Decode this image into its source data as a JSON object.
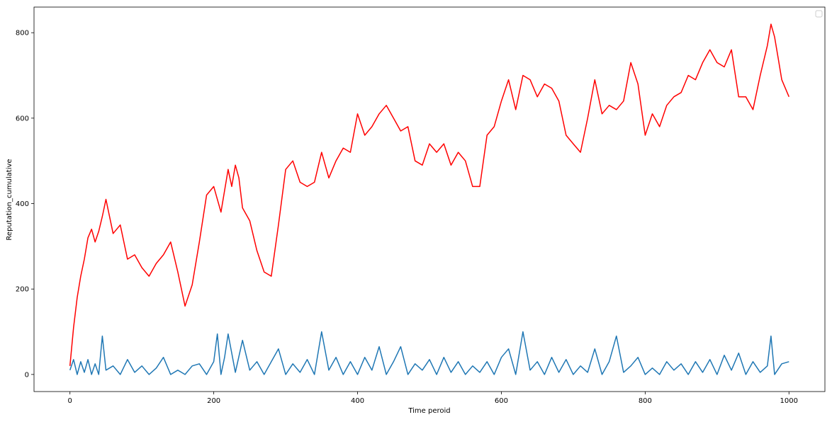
{
  "chart_data": {
    "type": "line",
    "title": "",
    "xlabel": "Time peroid",
    "ylabel": "Reputation_cumulative",
    "xlim": [
      -50,
      1050
    ],
    "ylim": [
      -40,
      860
    ],
    "xticks": [
      0,
      200,
      400,
      600,
      800,
      1000
    ],
    "yticks": [
      0,
      200,
      400,
      600,
      800
    ],
    "grid": false,
    "legend": {
      "placement": "top-right",
      "entries": []
    },
    "series": [
      {
        "color": "#ff0000",
        "x": [
          0,
          5,
          10,
          15,
          20,
          25,
          30,
          35,
          40,
          45,
          50,
          60,
          70,
          80,
          90,
          100,
          110,
          120,
          130,
          140,
          150,
          160,
          170,
          180,
          190,
          200,
          210,
          220,
          225,
          230,
          235,
          240,
          250,
          260,
          270,
          280,
          290,
          300,
          310,
          320,
          330,
          340,
          350,
          360,
          370,
          380,
          390,
          400,
          410,
          420,
          430,
          440,
          450,
          460,
          470,
          480,
          490,
          500,
          510,
          520,
          530,
          540,
          550,
          560,
          570,
          580,
          590,
          600,
          610,
          620,
          630,
          640,
          650,
          660,
          670,
          680,
          690,
          700,
          710,
          720,
          730,
          740,
          750,
          760,
          770,
          780,
          790,
          800,
          810,
          820,
          830,
          840,
          850,
          860,
          870,
          880,
          890,
          900,
          910,
          920,
          930,
          940,
          950,
          960,
          970,
          975,
          980,
          985,
          990,
          1000
        ],
        "values": [
          20,
          110,
          180,
          230,
          270,
          320,
          340,
          310,
          335,
          370,
          410,
          330,
          350,
          270,
          280,
          250,
          230,
          260,
          280,
          310,
          240,
          160,
          210,
          310,
          420,
          440,
          380,
          480,
          440,
          490,
          460,
          390,
          360,
          290,
          240,
          230,
          350,
          480,
          500,
          450,
          440,
          450,
          520,
          460,
          500,
          530,
          520,
          610,
          560,
          580,
          610,
          630,
          600,
          570,
          580,
          500,
          490,
          540,
          520,
          540,
          490,
          520,
          500,
          440,
          440,
          560,
          580,
          640,
          690,
          620,
          700,
          690,
          650,
          680,
          670,
          640,
          560,
          540,
          520,
          600,
          690,
          610,
          630,
          620,
          640,
          730,
          680,
          560,
          610,
          580,
          630,
          650,
          660,
          700,
          690,
          730,
          760,
          730,
          720,
          760,
          650,
          650,
          620,
          700,
          770,
          820,
          790,
          740,
          690,
          650
        ]
      },
      {
        "color": "#1f77b4",
        "x": [
          0,
          5,
          10,
          15,
          20,
          25,
          30,
          35,
          40,
          45,
          50,
          60,
          70,
          80,
          90,
          100,
          110,
          120,
          130,
          140,
          150,
          160,
          170,
          180,
          190,
          200,
          205,
          210,
          215,
          220,
          230,
          240,
          250,
          260,
          270,
          280,
          290,
          300,
          310,
          320,
          330,
          340,
          350,
          360,
          370,
          380,
          390,
          400,
          410,
          420,
          430,
          440,
          450,
          460,
          470,
          480,
          490,
          500,
          510,
          520,
          530,
          540,
          550,
          560,
          570,
          580,
          590,
          600,
          610,
          620,
          630,
          640,
          650,
          660,
          670,
          680,
          690,
          700,
          710,
          720,
          730,
          740,
          750,
          760,
          770,
          780,
          790,
          800,
          810,
          820,
          830,
          840,
          850,
          860,
          870,
          880,
          890,
          900,
          910,
          920,
          930,
          940,
          950,
          960,
          970,
          975,
          980,
          990,
          1000
        ],
        "values": [
          10,
          35,
          0,
          30,
          5,
          35,
          0,
          25,
          0,
          90,
          10,
          20,
          0,
          35,
          5,
          20,
          0,
          15,
          40,
          0,
          10,
          0,
          20,
          25,
          0,
          30,
          95,
          0,
          40,
          95,
          5,
          80,
          10,
          30,
          0,
          30,
          60,
          0,
          25,
          5,
          35,
          0,
          100,
          10,
          40,
          0,
          30,
          0,
          40,
          10,
          65,
          0,
          30,
          65,
          0,
          25,
          10,
          35,
          0,
          40,
          5,
          30,
          0,
          20,
          5,
          30,
          0,
          40,
          60,
          0,
          100,
          10,
          30,
          0,
          40,
          5,
          35,
          0,
          20,
          5,
          60,
          0,
          30,
          90,
          5,
          20,
          40,
          0,
          15,
          0,
          30,
          10,
          25,
          0,
          30,
          5,
          35,
          0,
          45,
          10,
          50,
          0,
          30,
          5,
          20,
          90,
          0,
          25,
          30
        ]
      }
    ]
  }
}
